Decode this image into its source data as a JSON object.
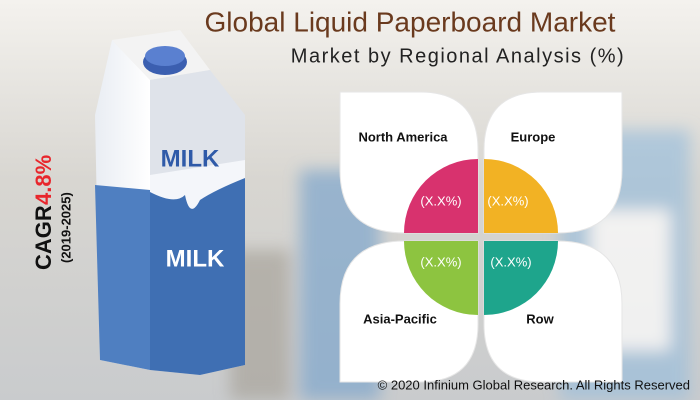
{
  "header": {
    "title": "Global Liquid Paperboard Market",
    "subtitle": "Market by Regional Analysis (%)"
  },
  "cagr": {
    "label": "CAGR",
    "value": "4.8%",
    "period": "(2019-2025)"
  },
  "carton": {
    "labels": [
      "MILK",
      "MILK"
    ]
  },
  "regions": [
    {
      "name": "North America",
      "value": "(X.X%)"
    },
    {
      "name": "Europe",
      "value": "(X.X%)"
    },
    {
      "name": "Asia-Pacific",
      "value": "(X.X%)"
    },
    {
      "name": "Row",
      "value": "(X.X%)"
    }
  ],
  "footer": {
    "copyright": "© 2020 Infinium Global Research. All Rights Reserved"
  }
}
